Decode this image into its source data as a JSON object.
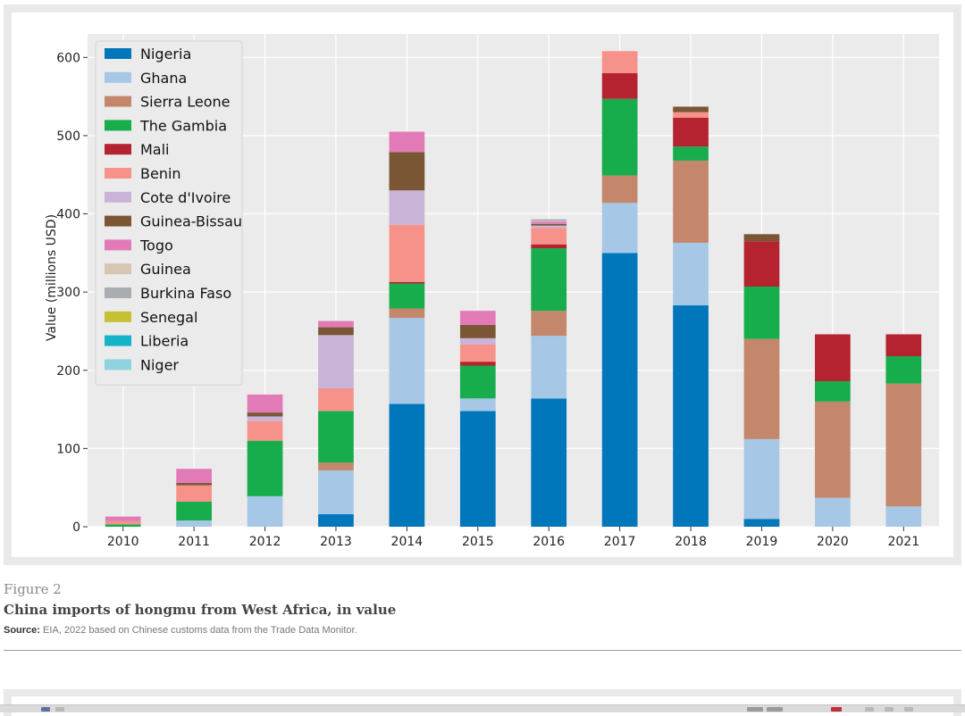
{
  "figure": {
    "label": "Figure 2",
    "title": "China imports of hongmu from West Africa, in value",
    "source_label": "Source:",
    "source_text": "EIA, 2022 based on Chinese customs data from the Trade Data Monitor."
  },
  "chart_data": {
    "type": "bar",
    "stacked": true,
    "title": "",
    "xlabel": "",
    "ylabel": "Value (millions USD)",
    "ylim": [
      0,
      630
    ],
    "yticks": [
      0,
      100,
      200,
      300,
      400,
      500,
      600
    ],
    "grid": true,
    "legend_position": "top-left",
    "categories": [
      "2010",
      "2011",
      "2012",
      "2013",
      "2014",
      "2015",
      "2016",
      "2017",
      "2018",
      "2019",
      "2020",
      "2021"
    ],
    "series": [
      {
        "name": "Nigeria",
        "color": "#0077bb",
        "values": [
          0,
          0,
          0,
          16,
          157,
          148,
          164,
          350,
          283,
          10,
          0,
          0
        ]
      },
      {
        "name": "Ghana",
        "color": "#a6c8e6",
        "values": [
          0,
          8,
          39,
          56,
          110,
          16,
          80,
          64,
          80,
          102,
          37,
          26
        ]
      },
      {
        "name": "Sierra Leone",
        "color": "#c4876c",
        "values": [
          0,
          0,
          0,
          10,
          12,
          0,
          32,
          35,
          105,
          128,
          123,
          157
        ]
      },
      {
        "name": "The Gambia",
        "color": "#17ad4c",
        "values": [
          3,
          24,
          71,
          66,
          32,
          42,
          80,
          98,
          18,
          67,
          26,
          35
        ]
      },
      {
        "name": "Mali",
        "color": "#b52230",
        "values": [
          0,
          0,
          0,
          0,
          2,
          5,
          5,
          33,
          37,
          58,
          60,
          28
        ]
      },
      {
        "name": "Benin",
        "color": "#f7928a",
        "values": [
          4,
          21,
          25,
          29,
          73,
          22,
          21,
          28,
          7,
          0,
          0,
          0
        ]
      },
      {
        "name": "Cote d'Ivoire",
        "color": "#c9b3d6",
        "values": [
          0,
          0,
          6,
          68,
          44,
          8,
          3,
          0,
          0,
          0,
          0,
          0
        ]
      },
      {
        "name": "Guinea-Bissau",
        "color": "#7a5634",
        "values": [
          0,
          3,
          5,
          10,
          49,
          17,
          2,
          0,
          7,
          9,
          0,
          0
        ]
      },
      {
        "name": "Togo",
        "color": "#e27ab8",
        "values": [
          6,
          18,
          23,
          8,
          26,
          18,
          3,
          0,
          0,
          0,
          0,
          0
        ]
      },
      {
        "name": "Guinea",
        "color": "#d6c6b2",
        "values": [
          0,
          0,
          0,
          0,
          0,
          0,
          1,
          0,
          0,
          0,
          0,
          0
        ]
      },
      {
        "name": "Burkina Faso",
        "color": "#a9adb2",
        "values": [
          0,
          0,
          0,
          0,
          0,
          0,
          2,
          0,
          0,
          0,
          0,
          0
        ]
      },
      {
        "name": "Senegal",
        "color": "#c6c034",
        "values": [
          0,
          0,
          0,
          0,
          0,
          0,
          0,
          0,
          0,
          0,
          0,
          0
        ]
      },
      {
        "name": "Liberia",
        "color": "#14b3c8",
        "values": [
          0,
          0,
          0,
          0,
          0,
          0,
          0,
          0,
          0,
          0,
          0,
          0
        ]
      },
      {
        "name": "Niger",
        "color": "#8ed3df",
        "values": [
          0,
          0,
          0,
          0,
          0,
          0,
          0,
          0,
          0,
          0,
          0,
          0
        ]
      }
    ]
  }
}
